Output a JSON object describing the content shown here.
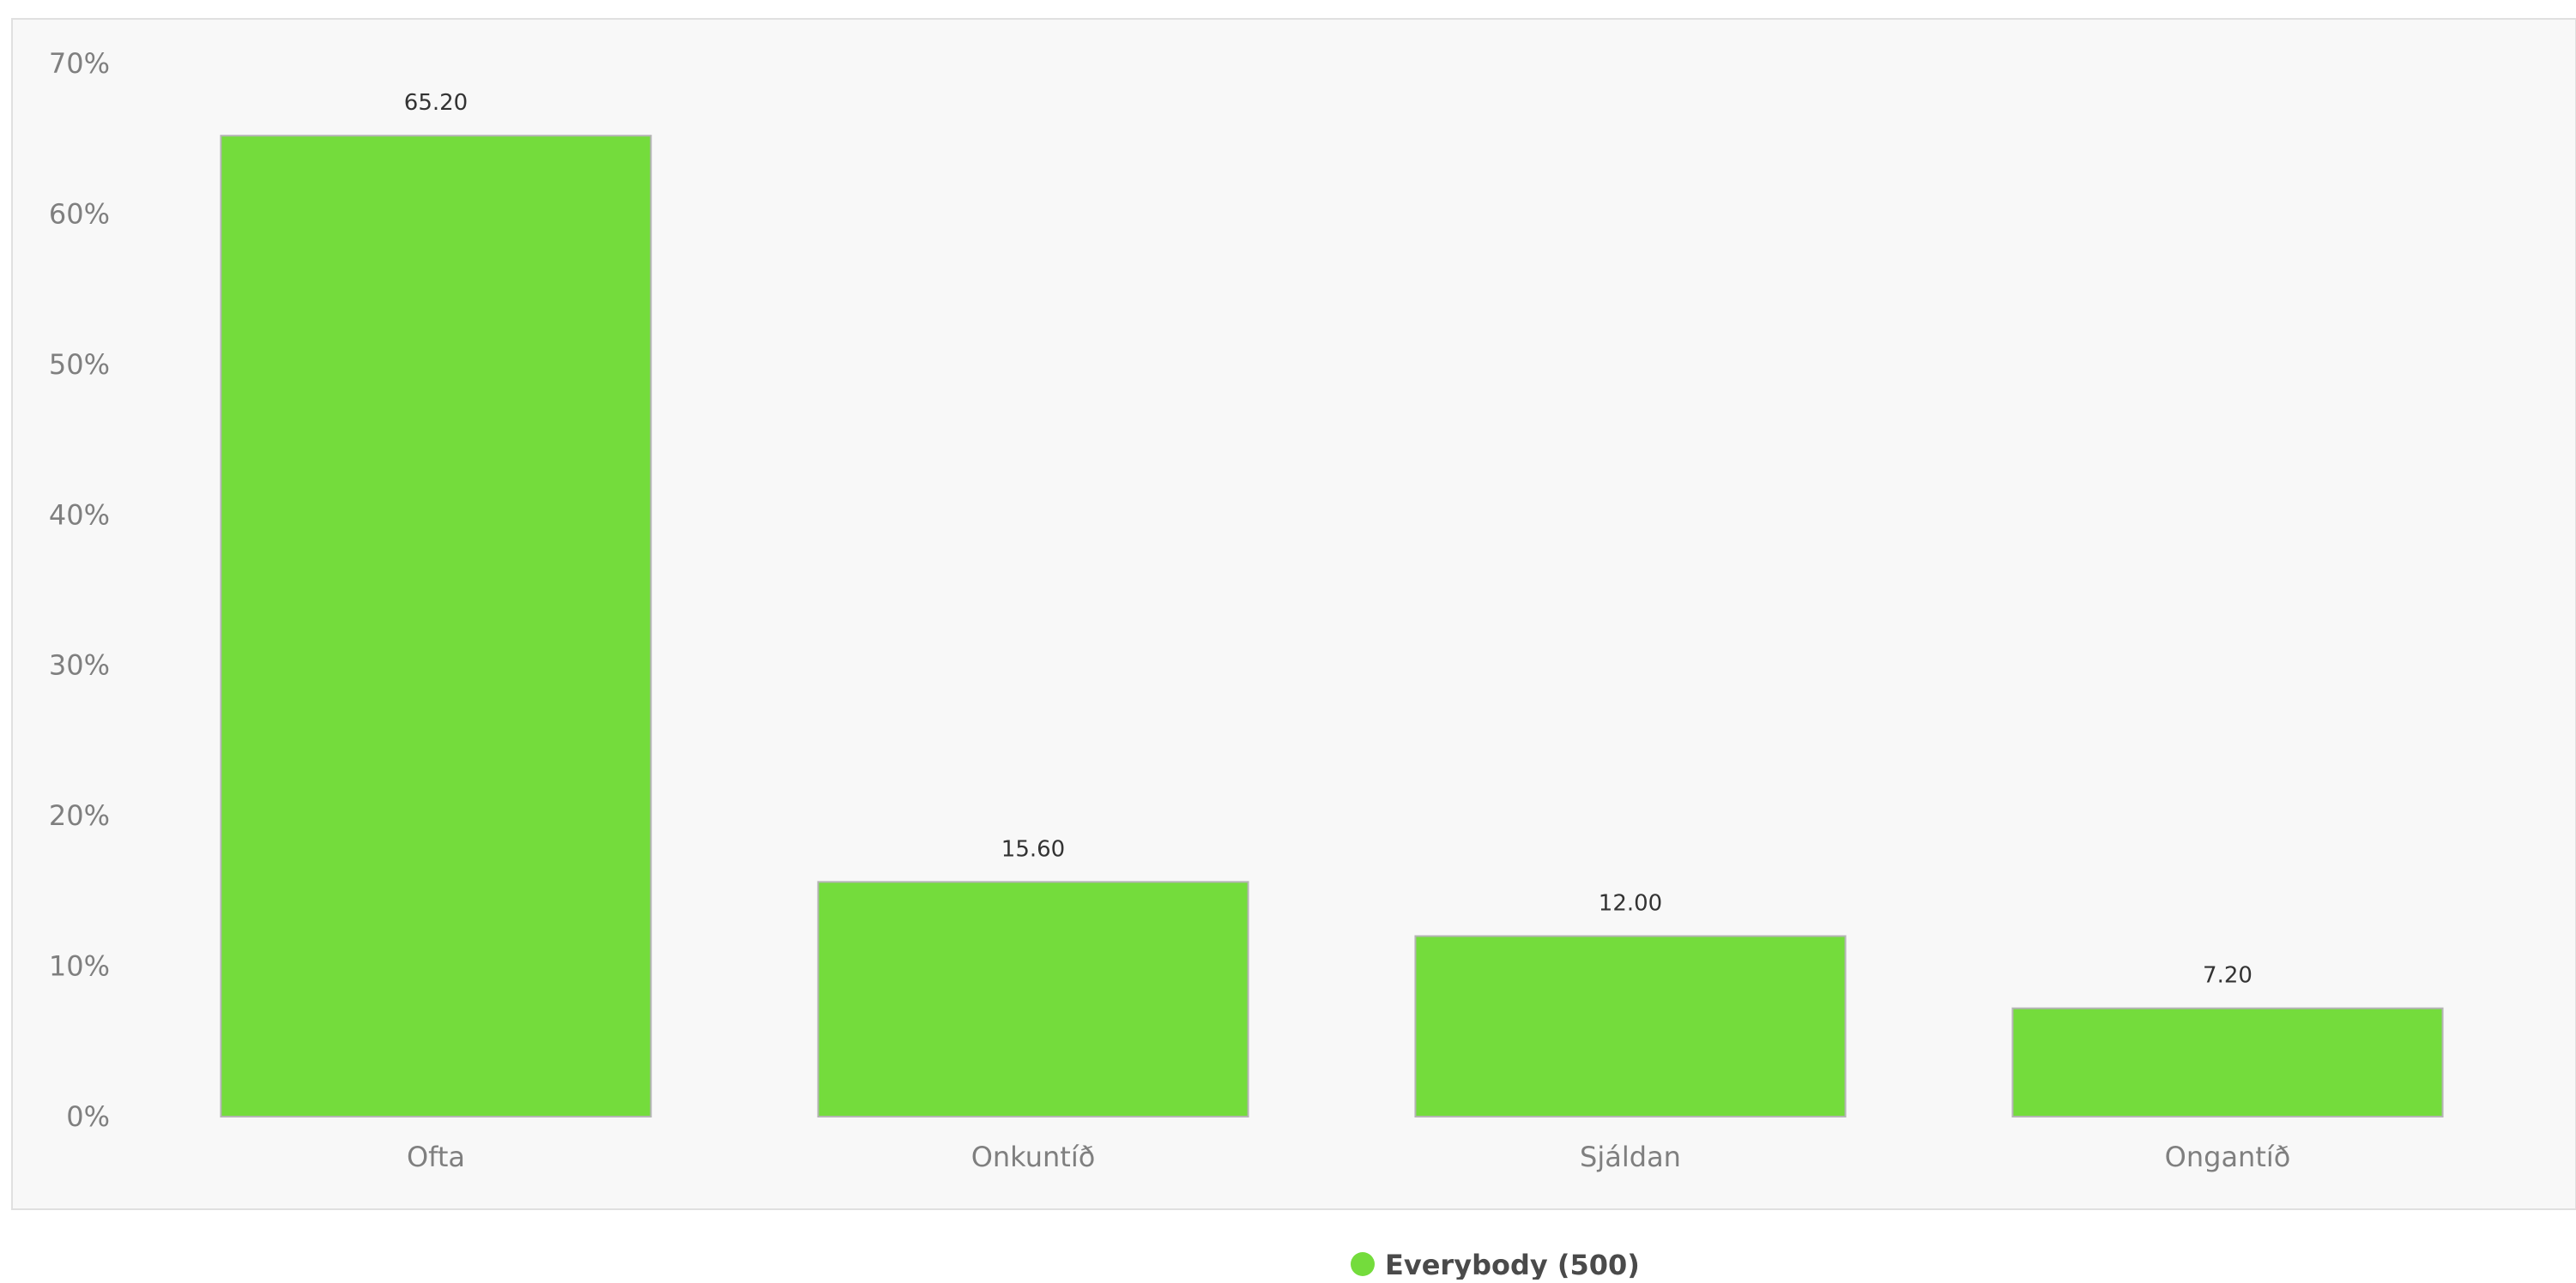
{
  "chart_data": {
    "type": "bar",
    "categories": [
      "Ofta",
      "Onkuntíð",
      "Sjáldan",
      "Ongantíð"
    ],
    "series": [
      {
        "name": "Everybody (500)",
        "values": [
          65.2,
          15.6,
          12.0,
          7.2
        ],
        "data_labels": [
          "65.20",
          "15.60",
          "12.00",
          "7.20"
        ],
        "color": "#74dc3c"
      }
    ],
    "y_ticks": [
      "0%",
      "10%",
      "20%",
      "30%",
      "40%",
      "50%",
      "60%",
      "70%"
    ],
    "y_tick_values": [
      0,
      10,
      20,
      30,
      40,
      50,
      60,
      70
    ],
    "ylim": [
      0,
      70
    ],
    "grid": false,
    "legend_position": "bottom-center",
    "bar_border_color": "#b5b5b5",
    "plot_background": "#f8f8f8",
    "plot_border_color": "#e0e0e0"
  }
}
